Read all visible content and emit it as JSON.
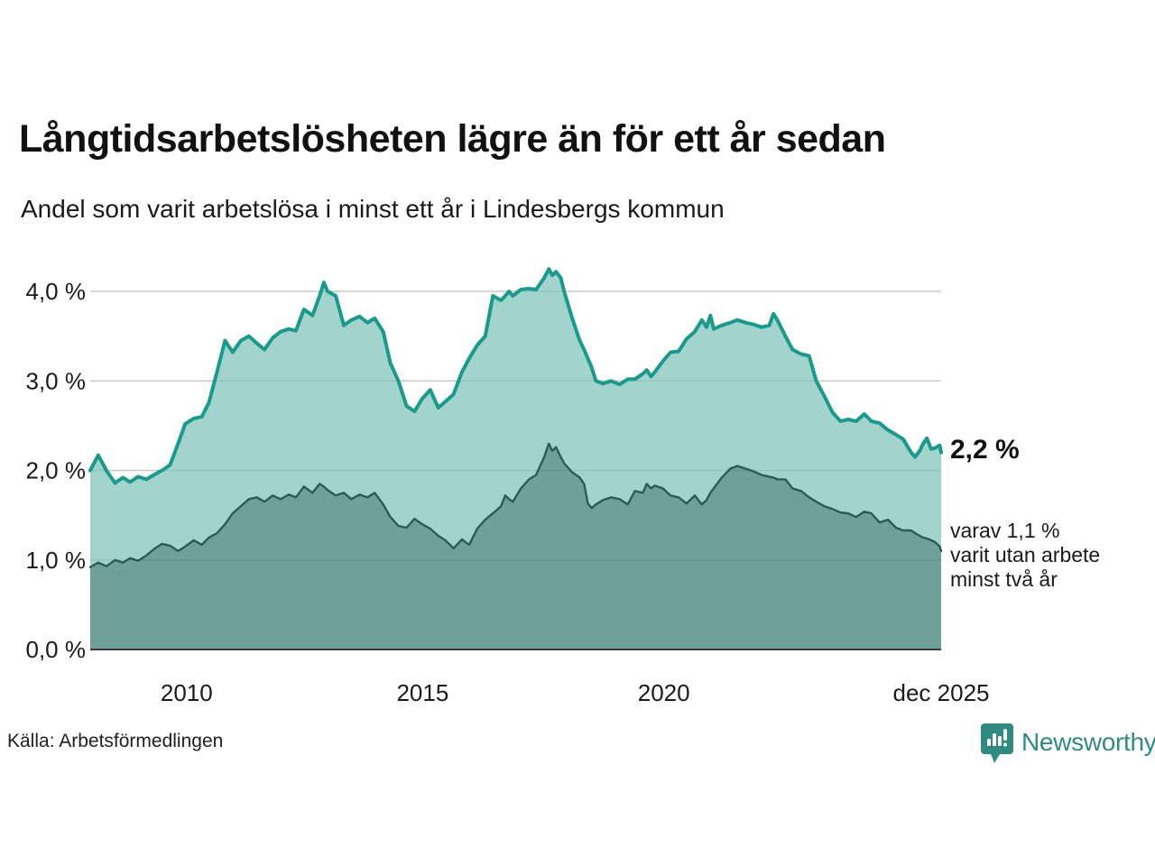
{
  "header": {
    "title": "Långtidsarbetslösheten lägre än för ett år sedan",
    "subtitle": "Andel som varit arbetslösa i minst ett år i Lindesbergs kommun"
  },
  "annotations": {
    "latest_total": "2,2 %",
    "latest_sub_line1": "varav 1,1 %",
    "latest_sub_line2": "varit utan arbete",
    "latest_sub_line3": "minst två år"
  },
  "footer": {
    "source": "Källa: Arbetsförmedlingen",
    "logo_text": "Newsworthy"
  },
  "colors": {
    "series1_line": "#189b8a",
    "series1_fill": "#a2d4cd",
    "series2_line": "#2b5d55",
    "series2_fill": "#6fa09a",
    "gridline": "#d9d9d9",
    "baseline": "#3d3d3d",
    "text": "#1a1a1a",
    "logo_teal": "#2f8b80"
  },
  "chart_data": {
    "type": "area",
    "title": "Långtidsarbetslösheten lägre än för ett år sedan",
    "subtitle": "Andel som varit arbetslösa i minst ett år i Lindesbergs kommun",
    "xlabel": "",
    "ylabel": "",
    "xlim": [
      2008.0,
      2025.92
    ],
    "ylim": [
      0,
      4.3
    ],
    "grid": true,
    "legend_position": "none",
    "y_ticks": [
      {
        "value": 0,
        "label": "0,0 %"
      },
      {
        "value": 1,
        "label": "1,0 %"
      },
      {
        "value": 2,
        "label": "2,0 %"
      },
      {
        "value": 3,
        "label": "3,0 %"
      },
      {
        "value": 4,
        "label": "4,0 %"
      }
    ],
    "x_ticks": [
      {
        "value": 2010.03,
        "label": "2010"
      },
      {
        "value": 2015.0,
        "label": "2015"
      },
      {
        "value": 2020.08,
        "label": "2020"
      },
      {
        "value": 2025.92,
        "label": "dec 2025"
      }
    ],
    "x": [
      2008.0,
      2008.17,
      2008.34,
      2008.52,
      2008.69,
      2008.84,
      2009.01,
      2009.18,
      2009.34,
      2009.51,
      2009.68,
      2009.85,
      2010.0,
      2010.18,
      2010.35,
      2010.5,
      2010.67,
      2010.84,
      2011.0,
      2011.17,
      2011.34,
      2011.51,
      2011.67,
      2011.84,
      2012.01,
      2012.18,
      2012.33,
      2012.5,
      2012.68,
      2012.83,
      2012.92,
      2013.0,
      2013.17,
      2013.34,
      2013.5,
      2013.67,
      2013.84,
      2013.99,
      2014.17,
      2014.32,
      2014.49,
      2014.66,
      2014.83,
      2014.99,
      2015.16,
      2015.33,
      2015.48,
      2015.65,
      2015.83,
      2015.98,
      2016.15,
      2016.32,
      2016.48,
      2016.65,
      2016.74,
      2016.82,
      2016.9,
      2017.07,
      2017.24,
      2017.39,
      2017.56,
      2017.66,
      2017.73,
      2017.81,
      2017.91,
      2017.98,
      2018.15,
      2018.31,
      2018.4,
      2018.48,
      2018.56,
      2018.65,
      2018.8,
      2018.97,
      2019.15,
      2019.32,
      2019.47,
      2019.64,
      2019.72,
      2019.81,
      2019.89,
      2020.06,
      2020.22,
      2020.39,
      2020.56,
      2020.73,
      2020.88,
      2020.98,
      2021.06,
      2021.13,
      2021.3,
      2021.48,
      2021.63,
      2021.8,
      2021.97,
      2022.14,
      2022.3,
      2022.39,
      2022.47,
      2022.64,
      2022.79,
      2022.97,
      2023.14,
      2023.29,
      2023.46,
      2023.63,
      2023.8,
      2023.96,
      2024.13,
      2024.3,
      2024.45,
      2024.62,
      2024.8,
      2024.97,
      2025.12,
      2025.29,
      2025.37,
      2025.47,
      2025.54,
      2025.62,
      2025.71,
      2025.79,
      2025.89,
      2025.92
    ],
    "series": [
      {
        "name": "Andel som varit arbetslösa i minst ett år",
        "end_label": "2,2 %",
        "values": [
          2.0,
          2.17,
          2.0,
          1.86,
          1.92,
          1.87,
          1.93,
          1.9,
          1.95,
          2.0,
          2.06,
          2.3,
          2.52,
          2.58,
          2.6,
          2.76,
          3.1,
          3.45,
          3.32,
          3.45,
          3.5,
          3.42,
          3.35,
          3.48,
          3.55,
          3.58,
          3.56,
          3.8,
          3.73,
          3.95,
          4.1,
          4.0,
          3.95,
          3.62,
          3.68,
          3.72,
          3.65,
          3.7,
          3.55,
          3.2,
          3.0,
          2.72,
          2.66,
          2.8,
          2.9,
          2.7,
          2.77,
          2.85,
          3.1,
          3.25,
          3.4,
          3.5,
          3.95,
          3.9,
          3.95,
          4.0,
          3.95,
          4.02,
          4.03,
          4.02,
          4.15,
          4.25,
          4.18,
          4.22,
          4.15,
          4.0,
          3.7,
          3.45,
          3.35,
          3.25,
          3.15,
          3.0,
          2.97,
          3.0,
          2.96,
          3.02,
          3.02,
          3.08,
          3.12,
          3.05,
          3.1,
          3.22,
          3.32,
          3.33,
          3.47,
          3.55,
          3.68,
          3.6,
          3.73,
          3.58,
          3.62,
          3.65,
          3.68,
          3.65,
          3.63,
          3.6,
          3.62,
          3.75,
          3.68,
          3.5,
          3.35,
          3.3,
          3.28,
          3.0,
          2.83,
          2.65,
          2.55,
          2.57,
          2.55,
          2.63,
          2.55,
          2.53,
          2.45,
          2.4,
          2.35,
          2.2,
          2.15,
          2.22,
          2.3,
          2.36,
          2.24,
          2.25,
          2.28,
          2.2
        ]
      },
      {
        "name": "varav utan arbete minst två år",
        "end_label": "1,1 %",
        "values": [
          0.92,
          0.97,
          0.93,
          1.0,
          0.97,
          1.02,
          0.99,
          1.05,
          1.12,
          1.18,
          1.16,
          1.1,
          1.15,
          1.22,
          1.17,
          1.25,
          1.3,
          1.4,
          1.52,
          1.6,
          1.68,
          1.7,
          1.65,
          1.72,
          1.68,
          1.73,
          1.7,
          1.82,
          1.75,
          1.85,
          1.82,
          1.78,
          1.72,
          1.75,
          1.68,
          1.73,
          1.7,
          1.75,
          1.62,
          1.48,
          1.38,
          1.36,
          1.46,
          1.4,
          1.35,
          1.27,
          1.22,
          1.13,
          1.23,
          1.17,
          1.35,
          1.45,
          1.52,
          1.6,
          1.72,
          1.68,
          1.65,
          1.8,
          1.9,
          1.95,
          2.15,
          2.3,
          2.22,
          2.26,
          2.15,
          2.08,
          1.98,
          1.92,
          1.85,
          1.63,
          1.58,
          1.62,
          1.67,
          1.7,
          1.68,
          1.62,
          1.77,
          1.75,
          1.85,
          1.8,
          1.83,
          1.8,
          1.72,
          1.7,
          1.63,
          1.72,
          1.62,
          1.67,
          1.75,
          1.8,
          1.92,
          2.02,
          2.05,
          2.02,
          1.99,
          1.95,
          1.93,
          1.92,
          1.9,
          1.9,
          1.8,
          1.77,
          1.7,
          1.65,
          1.6,
          1.57,
          1.53,
          1.52,
          1.48,
          1.54,
          1.52,
          1.42,
          1.45,
          1.36,
          1.33,
          1.33,
          1.3,
          1.27,
          1.25,
          1.24,
          1.22,
          1.2,
          1.15,
          1.1
        ]
      }
    ]
  }
}
